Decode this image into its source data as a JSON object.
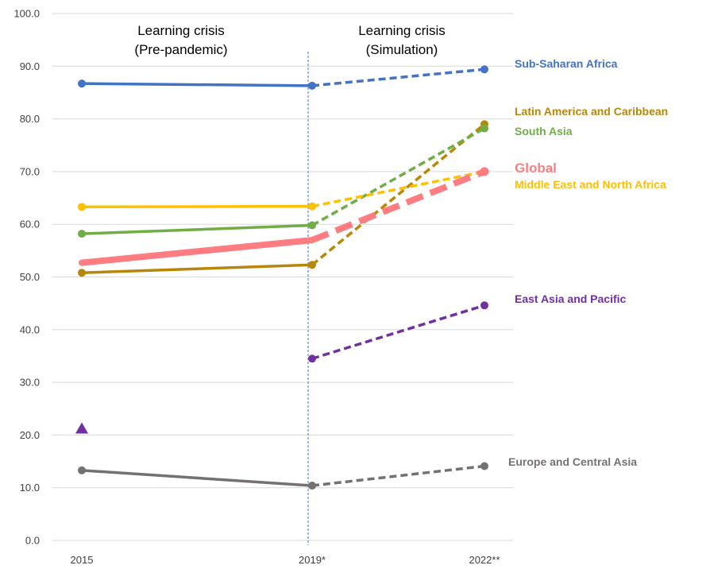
{
  "chart_data": {
    "type": "line",
    "title": "",
    "xlabel": "",
    "ylabel": "",
    "x": [
      "2015",
      "2019*",
      "2022**"
    ],
    "ylim": [
      0,
      100
    ],
    "y_ticks": [
      "0.0",
      "10.0",
      "20.0",
      "30.0",
      "40.0",
      "50.0",
      "60.0",
      "70.0",
      "80.0",
      "90.0",
      "100.0"
    ],
    "grid": true,
    "period_labels": [
      {
        "line1": "Learning crisis",
        "line2": "(Pre-pandemic)"
      },
      {
        "line1": "Learning crisis",
        "line2": "(Simulation)"
      }
    ],
    "series": [
      {
        "name": "Sub-Saharan Africa",
        "color": "#4472C4",
        "values": [
          86.7,
          86.3,
          89.4
        ],
        "emphasis": false
      },
      {
        "name": "Latin America and Caribbean",
        "color": "#B8860B",
        "values": [
          50.8,
          52.3,
          79.0
        ],
        "emphasis": false
      },
      {
        "name": "South Asia",
        "color": "#70AD47",
        "values": [
          58.2,
          59.8,
          78.2
        ],
        "emphasis": false
      },
      {
        "name": "Global",
        "color": "#FF7C80",
        "values": [
          52.7,
          57.0,
          70.0
        ],
        "emphasis": true
      },
      {
        "name": "Middle East and North Africa",
        "color": "#FFC000",
        "values": [
          63.3,
          63.4,
          70.0
        ],
        "emphasis": false
      },
      {
        "name": "East Asia and Pacific",
        "color": "#7030A0",
        "values": [
          null,
          34.5,
          44.6
        ],
        "extra_2015_marker": 21.2,
        "emphasis": false
      },
      {
        "name": "Europe and Central Asia",
        "color": "#767171",
        "values": [
          13.3,
          10.4,
          14.1
        ],
        "emphasis": false
      }
    ]
  }
}
